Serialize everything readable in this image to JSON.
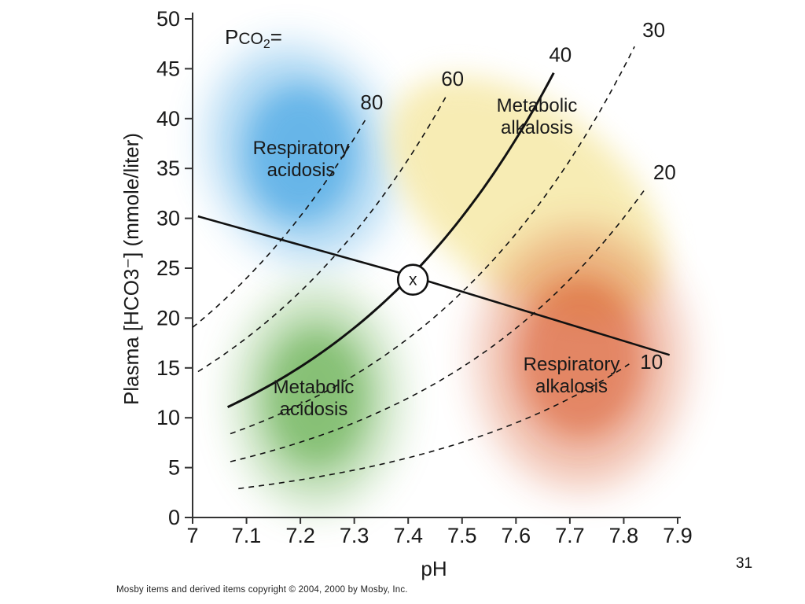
{
  "slide": {
    "number": "31",
    "copyright": "Mosby items and derived items copyright © 2004, 2000 by Mosby, Inc."
  },
  "colors": {
    "respiratory_acidosis": "#2f9ae0",
    "metabolic_alkalosis": "#f6e9a8",
    "metabolic_acidosis": "#5aa943",
    "respiratory_alkalosis": "#d9582a",
    "line": "#111111"
  },
  "chart_data": {
    "type": "line",
    "title": "",
    "xlabel": "pH",
    "ylabel": "Plasma [HCO3⁻] (mmole/liter)",
    "xlim": [
      7.0,
      7.9
    ],
    "ylim": [
      0,
      50
    ],
    "x_ticks": [
      "7",
      "7.1",
      "7.2",
      "7.3",
      "7.4",
      "7.5",
      "7.6",
      "7.7",
      "7.8",
      "7.9"
    ],
    "x_tick_values": [
      7.0,
      7.1,
      7.2,
      7.3,
      7.4,
      7.5,
      7.6,
      7.7,
      7.8,
      7.9
    ],
    "y_ticks": [
      "0",
      "5",
      "10",
      "15",
      "20",
      "25",
      "30",
      "35",
      "40",
      "45",
      "50"
    ],
    "y_tick_values": [
      0,
      5,
      10,
      15,
      20,
      25,
      30,
      35,
      40,
      45,
      50
    ],
    "pco2_label": {
      "prefix": "P",
      "main": "CO",
      "sub": "2",
      "suffix": "="
    },
    "isobars": [
      {
        "pco2": 80,
        "label": "80",
        "style": "dashed",
        "x_range": [
          7.0,
          7.32
        ]
      },
      {
        "pco2": 60,
        "label": "60",
        "style": "dashed",
        "x_range": [
          7.01,
          7.47
        ]
      },
      {
        "pco2": 40,
        "label": "40",
        "style": "solid",
        "x_range": [
          7.065,
          7.67
        ]
      },
      {
        "pco2": 30,
        "label": "30",
        "style": "dashed",
        "x_range": [
          7.07,
          7.82
        ]
      },
      {
        "pco2": 20,
        "label": "20",
        "style": "dashed",
        "x_range": [
          7.07,
          7.84
        ]
      },
      {
        "pco2": 10,
        "label": "10",
        "style": "dashed",
        "x_range": [
          7.085,
          7.81
        ]
      }
    ],
    "buffer_line": {
      "points": [
        [
          7.01,
          30.2
        ],
        [
          7.4,
          24.3
        ],
        [
          7.885,
          16.3
        ]
      ],
      "style": "solid"
    },
    "normal_point": {
      "label": "x",
      "ph": 7.4,
      "hco3": 24.0
    },
    "regions": [
      {
        "key": "respiratory_acidosis",
        "lines": [
          "Respiratory",
          "acidosis"
        ],
        "center": [
          7.2,
          36.5
        ],
        "radius": [
          0.165,
          11
        ]
      },
      {
        "key": "metabolic_alkalosis",
        "lines": [
          "Metabolic",
          "alkalosis"
        ],
        "center": [
          7.62,
          32
        ],
        "radius": [
          0.17,
          16
        ]
      },
      {
        "key": "metabolic_acidosis",
        "lines": [
          "Metabolic",
          "acidosis"
        ],
        "center": [
          7.23,
          12
        ],
        "radius": [
          0.15,
          11
        ]
      },
      {
        "key": "respiratory_alkalosis",
        "lines": [
          "Respiratory",
          "alkalosis"
        ],
        "center": [
          7.72,
          16
        ],
        "radius": [
          0.19,
          13
        ]
      }
    ]
  }
}
